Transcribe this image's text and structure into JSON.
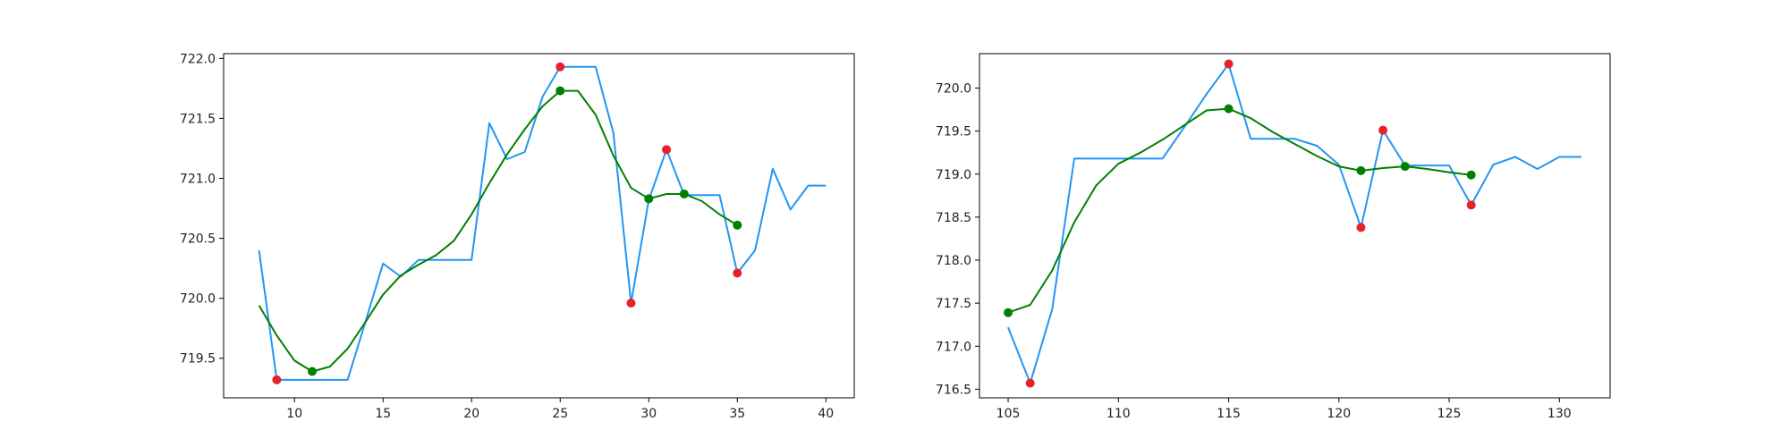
{
  "chart_data": [
    {
      "type": "line",
      "title": "",
      "xlabel": "",
      "ylabel": "",
      "xlim": [
        6,
        41.6
      ],
      "ylim": [
        719.17,
        722.04
      ],
      "xticks": [
        10,
        15,
        20,
        25,
        30,
        35,
        40
      ],
      "xtick_labels": [
        "10",
        "15",
        "20",
        "25",
        "30",
        "35",
        "40"
      ],
      "yticks": [
        719.5,
        720.0,
        720.5,
        721.0,
        721.5,
        722.0
      ],
      "ytick_labels": [
        "719.5",
        "720.0",
        "720.5",
        "721.0",
        "721.5",
        "722.0"
      ],
      "grid": false,
      "series": [
        {
          "kind": "line",
          "color": "#2196f3",
          "x": [
            8,
            9,
            10,
            11,
            12,
            13,
            14,
            15,
            16,
            17,
            18,
            19,
            20,
            21,
            22,
            23,
            24,
            25,
            26,
            27,
            28,
            29,
            30,
            31,
            32,
            33,
            34,
            35,
            36,
            37,
            38,
            39,
            40
          ],
          "y": [
            720.4,
            719.32,
            719.32,
            719.32,
            719.32,
            719.32,
            719.8,
            720.29,
            720.18,
            720.32,
            720.32,
            720.32,
            720.32,
            721.46,
            721.16,
            721.22,
            721.68,
            721.93,
            721.93,
            721.93,
            721.38,
            719.96,
            720.82,
            721.24,
            720.86,
            720.86,
            720.86,
            720.21,
            720.4,
            721.08,
            720.74,
            720.94,
            720.94
          ]
        },
        {
          "kind": "line",
          "color": "#008000",
          "x": [
            8,
            9,
            10,
            11,
            12,
            13,
            14,
            15,
            16,
            17,
            18,
            19,
            20,
            21,
            22,
            23,
            24,
            25,
            26,
            27,
            28,
            29,
            30,
            31,
            32,
            33,
            34,
            35
          ],
          "y": [
            719.94,
            719.69,
            719.48,
            719.39,
            719.43,
            719.58,
            719.8,
            720.03,
            720.19,
            720.28,
            720.36,
            720.48,
            720.7,
            720.96,
            721.2,
            721.41,
            721.6,
            721.73,
            721.73,
            721.53,
            721.19,
            720.92,
            720.83,
            720.87,
            720.87,
            720.81,
            720.7,
            720.61
          ]
        },
        {
          "kind": "scatter",
          "color": "#e8202a",
          "x": [
            9,
            25,
            29,
            31,
            35
          ],
          "y": [
            719.32,
            721.93,
            719.96,
            721.24,
            720.21
          ]
        },
        {
          "kind": "scatter",
          "color": "#008000",
          "x": [
            11,
            25,
            30,
            32,
            35
          ],
          "y": [
            719.39,
            721.73,
            720.83,
            720.87,
            720.61
          ]
        }
      ]
    },
    {
      "type": "line",
      "title": "",
      "xlabel": "",
      "ylabel": "",
      "xlim": [
        103.7,
        132.3
      ],
      "ylim": [
        716.4,
        720.4
      ],
      "xticks": [
        105,
        110,
        115,
        120,
        125,
        130
      ],
      "xtick_labels": [
        "105",
        "110",
        "115",
        "120",
        "125",
        "130"
      ],
      "yticks": [
        716.5,
        717.0,
        717.5,
        718.0,
        718.5,
        719.0,
        719.5,
        720.0
      ],
      "ytick_labels": [
        "716.5",
        "717.0",
        "717.5",
        "718.0",
        "718.5",
        "719.0",
        "719.5",
        "720.0"
      ],
      "grid": false,
      "series": [
        {
          "kind": "line",
          "color": "#2196f3",
          "x": [
            105,
            106,
            107,
            108,
            109,
            110,
            111,
            112,
            113,
            114,
            115,
            116,
            117,
            118,
            119,
            120,
            121,
            122,
            123,
            124,
            125,
            126,
            127,
            128,
            129,
            130,
            131
          ],
          "y": [
            717.22,
            716.57,
            717.43,
            719.18,
            719.18,
            719.18,
            719.18,
            719.18,
            719.55,
            719.93,
            720.28,
            719.41,
            719.41,
            719.41,
            719.33,
            719.11,
            718.38,
            719.51,
            719.1,
            719.1,
            719.1,
            718.64,
            719.11,
            719.2,
            719.06,
            719.2,
            719.2
          ]
        },
        {
          "kind": "line",
          "color": "#008000",
          "x": [
            105,
            106,
            107,
            108,
            109,
            110,
            111,
            112,
            113,
            114,
            115,
            116,
            117,
            118,
            119,
            120,
            121,
            122,
            123,
            124,
            125,
            126
          ],
          "y": [
            717.39,
            717.48,
            717.88,
            718.44,
            718.87,
            719.12,
            719.25,
            719.4,
            719.57,
            719.74,
            719.76,
            719.65,
            719.49,
            719.35,
            719.21,
            719.09,
            719.04,
            719.07,
            719.09,
            719.06,
            719.02,
            718.99
          ]
        },
        {
          "kind": "scatter",
          "color": "#e8202a",
          "x": [
            106,
            115,
            121,
            122,
            126
          ],
          "y": [
            716.57,
            720.28,
            718.38,
            719.51,
            718.64
          ]
        },
        {
          "kind": "scatter",
          "color": "#008000",
          "x": [
            105,
            115,
            121,
            123,
            126
          ],
          "y": [
            717.39,
            719.76,
            719.04,
            719.09,
            718.99
          ]
        }
      ]
    }
  ]
}
